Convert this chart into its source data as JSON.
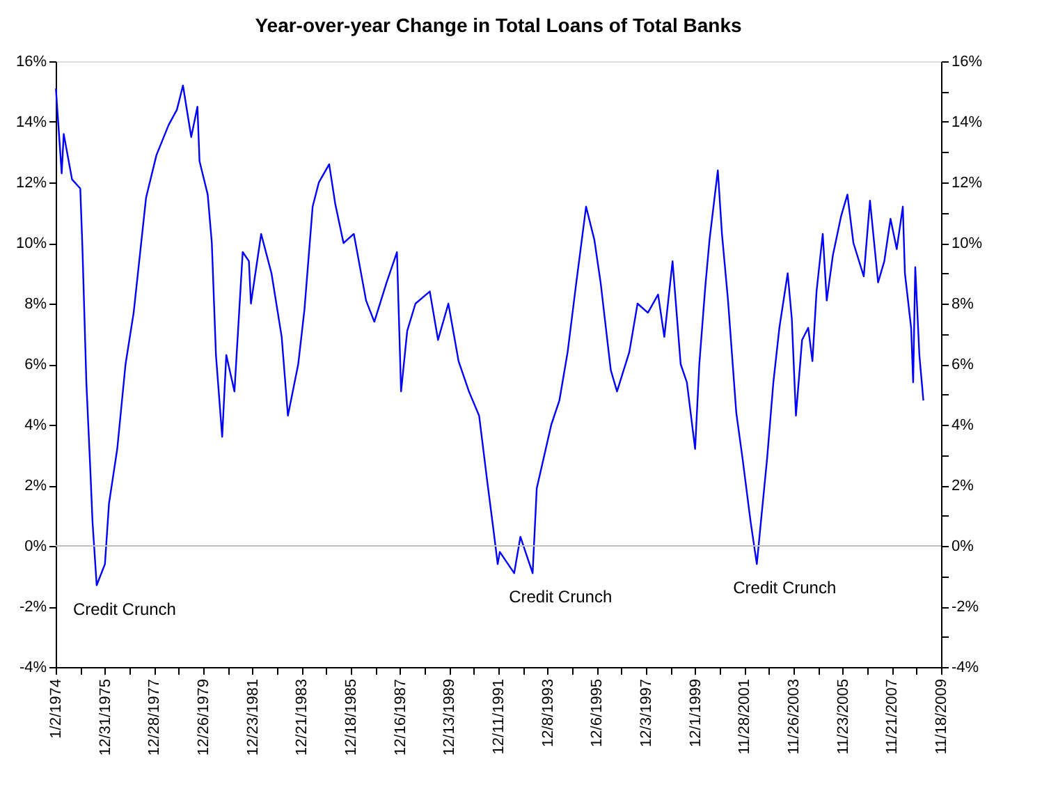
{
  "chart_data": {
    "type": "line",
    "title": "Year-over-year Change in Total Loans of Total Banks",
    "x": [
      "1974-01-05",
      "1974-04",
      "1974-05",
      "1974-09",
      "1975-01",
      "1975-02",
      "1975-04",
      "1975-06",
      "1975-07",
      "1975-09",
      "1976-01",
      "1976-03",
      "1976-07",
      "1976-11",
      "1977-03",
      "1977-06",
      "1977-09",
      "1978-02",
      "1978-08",
      "1978-12",
      "1979-03",
      "1979-07",
      "1979-10",
      "1979-11",
      "1980-03",
      "1980-05",
      "1980-07",
      "1980-10",
      "1980-12",
      "1981-04",
      "1981-08",
      "1981-11",
      "1981-12",
      "1982-05",
      "1982-10",
      "1983-03",
      "1983-06",
      "1983-11",
      "1984-02",
      "1984-06",
      "1984-09",
      "1985-02",
      "1985-05",
      "1985-09",
      "1986-02",
      "1986-08",
      "1986-12",
      "1987-06",
      "1987-11",
      "1988-01",
      "1988-04",
      "1988-08",
      "1989-03",
      "1989-07",
      "1989-12",
      "1990-05",
      "1990-10",
      "1991-03",
      "1991-07",
      "1991-10",
      "1991-12",
      "1992-01",
      "1992-08",
      "1992-11",
      "1993-05",
      "1993-07",
      "1993-10",
      "1994-02",
      "1994-06",
      "1994-10",
      "1995-02",
      "1995-07",
      "1995-11",
      "1996-02",
      "1996-07",
      "1996-10",
      "1997-04",
      "1997-08",
      "1998-01",
      "1998-06",
      "1998-09",
      "1999-01",
      "1999-05",
      "1999-08",
      "1999-12",
      "2000-02",
      "2000-05",
      "2000-07",
      "2000-11",
      "2001-01",
      "2001-04",
      "2001-08",
      "2001-11",
      "2002-03",
      "2002-06",
      "2002-08",
      "2002-11",
      "2003-02",
      "2003-05",
      "2003-09",
      "2003-11",
      "2004-01",
      "2004-04",
      "2004-07",
      "2004-09",
      "2004-11",
      "2005-02",
      "2005-04",
      "2005-07",
      "2005-11",
      "2006-02",
      "2006-05",
      "2006-10",
      "2007-01",
      "2007-05",
      "2007-08",
      "2007-11",
      "2008-02",
      "2008-05",
      "2008-06",
      "2008-09",
      "2008-10",
      "2008-11",
      "2009-01",
      "2009-03"
    ],
    "series": [
      {
        "color": "#0000ff",
        "values": [
          15.1,
          12.3,
          13.6,
          12.1,
          11.8,
          9.9,
          5.4,
          2.4,
          0.8,
          -1.3,
          -0.6,
          1.4,
          3.2,
          6.0,
          7.7,
          9.6,
          11.5,
          12.9,
          13.9,
          14.4,
          15.2,
          13.5,
          14.5,
          12.7,
          11.6,
          10.0,
          6.3,
          3.6,
          6.3,
          5.1,
          9.7,
          9.4,
          8.0,
          10.3,
          9.0,
          6.9,
          4.3,
          6.0,
          7.8,
          11.2,
          12.0,
          12.6,
          11.3,
          10.0,
          10.3,
          8.1,
          7.4,
          8.7,
          9.7,
          5.1,
          7.1,
          8.0,
          8.4,
          6.8,
          8.0,
          6.1,
          5.1,
          4.3,
          2.1,
          0.5,
          -0.6,
          -0.2,
          -0.9,
          0.3,
          -0.9,
          1.9,
          2.8,
          4.0,
          4.8,
          6.4,
          8.6,
          11.2,
          10.1,
          8.7,
          5.8,
          5.1,
          6.4,
          8.0,
          7.7,
          8.3,
          6.9,
          9.4,
          6.0,
          5.4,
          3.2,
          6.0,
          8.6,
          10.1,
          12.4,
          10.3,
          8.1,
          4.4,
          2.9,
          0.8,
          -0.6,
          0.8,
          2.9,
          5.4,
          7.2,
          9.0,
          7.5,
          4.3,
          6.8,
          7.2,
          6.1,
          8.4,
          10.3,
          8.1,
          9.6,
          10.9,
          11.6,
          10.0,
          8.9,
          11.4,
          8.7,
          9.4,
          10.8,
          9.8,
          11.2,
          9.0,
          7.2,
          5.4,
          9.2,
          6.3,
          4.8
        ]
      }
    ],
    "xlim": [
      "1974-01-02",
      "2009-11-18"
    ],
    "xticks": [
      {
        "value": "1974-01-02",
        "label": "1/2/1974"
      },
      {
        "value": "1975-01-01",
        "label": null
      },
      {
        "value": "1975-12-31",
        "label": "12/31/1975"
      },
      {
        "value": "1976-12-29",
        "label": null
      },
      {
        "value": "1977-12-28",
        "label": "12/28/1977"
      },
      {
        "value": "1978-12-27",
        "label": null
      },
      {
        "value": "1979-12-26",
        "label": "12/26/1979"
      },
      {
        "value": "1980-12-24",
        "label": null
      },
      {
        "value": "1981-12-23",
        "label": "12/23/1981"
      },
      {
        "value": "1982-12-22",
        "label": null
      },
      {
        "value": "1983-12-21",
        "label": "12/21/1983"
      },
      {
        "value": "1984-12-19",
        "label": null
      },
      {
        "value": "1985-12-18",
        "label": "12/18/1985"
      },
      {
        "value": "1986-12-17",
        "label": null
      },
      {
        "value": "1987-12-16",
        "label": "12/16/1987"
      },
      {
        "value": "1988-12-14",
        "label": null
      },
      {
        "value": "1989-12-13",
        "label": "12/13/1989"
      },
      {
        "value": "1990-12-12",
        "label": null
      },
      {
        "value": "1991-12-11",
        "label": "12/11/1991"
      },
      {
        "value": "1992-12-09",
        "label": null
      },
      {
        "value": "1993-12-08",
        "label": "12/8/1993"
      },
      {
        "value": "1994-12-07",
        "label": null
      },
      {
        "value": "1995-12-06",
        "label": "12/6/1995"
      },
      {
        "value": "1996-12-04",
        "label": null
      },
      {
        "value": "1997-12-03",
        "label": "12/3/1997"
      },
      {
        "value": "1998-12-02",
        "label": null
      },
      {
        "value": "1999-12-01",
        "label": "12/1/1999"
      },
      {
        "value": "2000-11-29",
        "label": null
      },
      {
        "value": "2001-11-28",
        "label": "11/28/2001"
      },
      {
        "value": "2002-11-27",
        "label": null
      },
      {
        "value": "2003-11-26",
        "label": "11/26/2003"
      },
      {
        "value": "2004-11-24",
        "label": null
      },
      {
        "value": "2005-11-23",
        "label": "11/23/2005"
      },
      {
        "value": "2006-11-22",
        "label": null
      },
      {
        "value": "2007-11-21",
        "label": "11/21/2007"
      },
      {
        "value": "2008-11-19",
        "label": null
      },
      {
        "value": "2009-11-18",
        "label": "11/18/2009"
      }
    ],
    "ylim": [
      -4,
      16
    ],
    "yticks": [
      {
        "value": -4,
        "label": "-4%"
      },
      {
        "value": -3,
        "label": null
      },
      {
        "value": -2,
        "label": "-2%"
      },
      {
        "value": -1,
        "label": null
      },
      {
        "value": 0,
        "label": "0%"
      },
      {
        "value": 1,
        "label": null
      },
      {
        "value": 2,
        "label": "2%"
      },
      {
        "value": 3,
        "label": null
      },
      {
        "value": 4,
        "label": "4%"
      },
      {
        "value": 5,
        "label": null
      },
      {
        "value": 6,
        "label": "6%"
      },
      {
        "value": 7,
        "label": null
      },
      {
        "value": 8,
        "label": "8%"
      },
      {
        "value": 9,
        "label": null
      },
      {
        "value": 10,
        "label": "10%"
      },
      {
        "value": 11,
        "label": null
      },
      {
        "value": 12,
        "label": "12%"
      },
      {
        "value": 13,
        "label": null
      },
      {
        "value": 14,
        "label": "14%"
      },
      {
        "value": 15,
        "label": null
      },
      {
        "value": 16,
        "label": "16%"
      }
    ],
    "y2lim": [
      -4,
      16
    ],
    "y2ticks": [
      {
        "value": -4,
        "label": "-4%"
      },
      {
        "value": -3,
        "label": null
      },
      {
        "value": -2,
        "label": "-2%"
      },
      {
        "value": -1,
        "label": null
      },
      {
        "value": 0,
        "label": "0%"
      },
      {
        "value": 1,
        "label": null
      },
      {
        "value": 2,
        "label": "2%"
      },
      {
        "value": 3,
        "label": null
      },
      {
        "value": 4,
        "label": "4%"
      },
      {
        "value": 5,
        "label": null
      },
      {
        "value": 6,
        "label": "6%"
      },
      {
        "value": 7,
        "label": null
      },
      {
        "value": 8,
        "label": "8%"
      },
      {
        "value": 9,
        "label": null
      },
      {
        "value": 10,
        "label": "10%"
      },
      {
        "value": 11,
        "label": null
      },
      {
        "value": 12,
        "label": "12%"
      },
      {
        "value": 13,
        "label": null
      },
      {
        "value": 14,
        "label": "14%"
      },
      {
        "value": 15,
        "label": null
      },
      {
        "value": 16,
        "label": "16%"
      }
    ],
    "ref_lines": [
      {
        "axis": "y",
        "value": 0,
        "color": "#c0c0c0"
      }
    ],
    "annotations": [
      {
        "text": "Credit Crunch",
        "x": "1975-09",
        "y": -1.3
      },
      {
        "text": "Credit Crunch",
        "x": "1993-05",
        "y": -0.9
      },
      {
        "text": "Credit Crunch",
        "x": "2002-06",
        "y": -0.6
      }
    ],
    "grid": false,
    "marker": "none",
    "line_style": "solid"
  }
}
